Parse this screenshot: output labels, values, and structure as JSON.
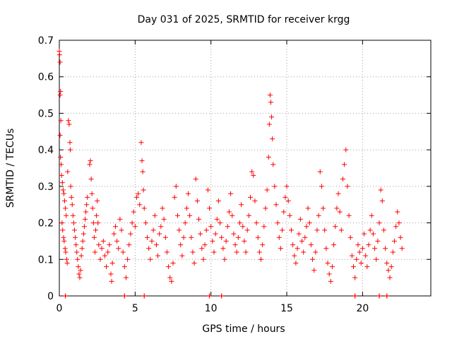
{
  "chart_data": {
    "type": "scatter",
    "title": "Day 031 of 2025, SRMTID for receiver krgg",
    "xlabel": "GPS time / hours",
    "ylabel": "SRMTID / TECUs",
    "xlim": [
      0,
      24.5
    ],
    "ylim": [
      0,
      0.7
    ],
    "xticks": [
      0,
      5,
      10,
      15,
      20
    ],
    "yticks": [
      0,
      0.1,
      0.2,
      0.3,
      0.4,
      0.5,
      0.6,
      0.7
    ],
    "grid": true,
    "marker": "+",
    "color": "#ff0000",
    "series": [
      {
        "name": "SRMTID",
        "points": [
          [
            0.0,
            0.67
          ],
          [
            0.02,
            0.66
          ],
          [
            0.05,
            0.64
          ],
          [
            0.08,
            0.56
          ],
          [
            0.05,
            0.55
          ],
          [
            0.1,
            0.48
          ],
          [
            0.05,
            0.44
          ],
          [
            0.08,
            0.38
          ],
          [
            0.12,
            0.36
          ],
          [
            0.15,
            0.33
          ],
          [
            0.2,
            0.31
          ],
          [
            0.25,
            0.29
          ],
          [
            0.3,
            0.28
          ],
          [
            0.35,
            0.26
          ],
          [
            0.4,
            0.24
          ],
          [
            0.45,
            0.22
          ],
          [
            0.18,
            0.2
          ],
          [
            0.22,
            0.18
          ],
          [
            0.28,
            0.16
          ],
          [
            0.32,
            0.15
          ],
          [
            0.38,
            0.13
          ],
          [
            0.42,
            0.12
          ],
          [
            0.48,
            0.1
          ],
          [
            0.52,
            0.09
          ],
          [
            0.6,
            0.48
          ],
          [
            0.65,
            0.47
          ],
          [
            0.7,
            0.42
          ],
          [
            0.72,
            0.4
          ],
          [
            0.55,
            0.34
          ],
          [
            0.75,
            0.3
          ],
          [
            0.8,
            0.27
          ],
          [
            0.85,
            0.25
          ],
          [
            0.9,
            0.22
          ],
          [
            0.95,
            0.2
          ],
          [
            1.0,
            0.18
          ],
          [
            1.05,
            0.16
          ],
          [
            1.1,
            0.14
          ],
          [
            1.15,
            0.12
          ],
          [
            1.2,
            0.1
          ],
          [
            1.25,
            0.08
          ],
          [
            1.3,
            0.06
          ],
          [
            1.35,
            0.05
          ],
          [
            1.4,
            0.07
          ],
          [
            1.45,
            0.11
          ],
          [
            1.5,
            0.13
          ],
          [
            1.55,
            0.15
          ],
          [
            1.6,
            0.17
          ],
          [
            1.65,
            0.19
          ],
          [
            1.7,
            0.21
          ],
          [
            1.75,
            0.23
          ],
          [
            1.8,
            0.25
          ],
          [
            1.85,
            0.27
          ],
          [
            2.0,
            0.36
          ],
          [
            2.05,
            0.37
          ],
          [
            2.1,
            0.32
          ],
          [
            2.15,
            0.28
          ],
          [
            2.2,
            0.24
          ],
          [
            2.25,
            0.2
          ],
          [
            2.3,
            0.16
          ],
          [
            2.35,
            0.12
          ],
          [
            2.4,
            0.18
          ],
          [
            2.45,
            0.22
          ],
          [
            2.5,
            0.26
          ],
          [
            2.55,
            0.2
          ],
          [
            2.6,
            0.14
          ],
          [
            2.7,
            0.1
          ],
          [
            2.8,
            0.13
          ],
          [
            2.9,
            0.15
          ],
          [
            3.0,
            0.11
          ],
          [
            3.1,
            0.08
          ],
          [
            3.2,
            0.12
          ],
          [
            3.3,
            0.14
          ],
          [
            3.4,
            0.06
          ],
          [
            3.45,
            0.04
          ],
          [
            3.5,
            0.09
          ],
          [
            3.6,
            0.17
          ],
          [
            3.7,
            0.19
          ],
          [
            3.8,
            0.15
          ],
          [
            3.9,
            0.13
          ],
          [
            4.0,
            0.21
          ],
          [
            4.1,
            0.18
          ],
          [
            4.2,
            0.12
          ],
          [
            4.3,
            0.08
          ],
          [
            4.4,
            0.05
          ],
          [
            4.5,
            0.1
          ],
          [
            4.6,
            0.14
          ],
          [
            4.7,
            0.17
          ],
          [
            4.8,
            0.2
          ],
          [
            4.9,
            0.23
          ],
          [
            5.0,
            0.19
          ],
          [
            5.1,
            0.27
          ],
          [
            5.2,
            0.28
          ],
          [
            5.3,
            0.25
          ],
          [
            5.4,
            0.42
          ],
          [
            5.45,
            0.37
          ],
          [
            5.5,
            0.34
          ],
          [
            5.55,
            0.29
          ],
          [
            5.6,
            0.24
          ],
          [
            5.7,
            0.2
          ],
          [
            5.8,
            0.16
          ],
          [
            5.9,
            0.13
          ],
          [
            6.0,
            0.1
          ],
          [
            6.1,
            0.15
          ],
          [
            6.2,
            0.18
          ],
          [
            6.3,
            0.22
          ],
          [
            6.4,
            0.14
          ],
          [
            6.5,
            0.11
          ],
          [
            6.6,
            0.17
          ],
          [
            6.7,
            0.19
          ],
          [
            6.8,
            0.24
          ],
          [
            6.9,
            0.21
          ],
          [
            7.0,
            0.16
          ],
          [
            7.1,
            0.12
          ],
          [
            7.2,
            0.08
          ],
          [
            7.3,
            0.05
          ],
          [
            7.4,
            0.04
          ],
          [
            7.5,
            0.09
          ],
          [
            7.6,
            0.27
          ],
          [
            7.7,
            0.3
          ],
          [
            7.8,
            0.22
          ],
          [
            7.9,
            0.18
          ],
          [
            8.0,
            0.14
          ],
          [
            8.1,
            0.11
          ],
          [
            8.2,
            0.16
          ],
          [
            8.3,
            0.2
          ],
          [
            8.4,
            0.24
          ],
          [
            8.5,
            0.28
          ],
          [
            8.6,
            0.22
          ],
          [
            8.7,
            0.16
          ],
          [
            8.8,
            0.12
          ],
          [
            8.9,
            0.09
          ],
          [
            9.0,
            0.32
          ],
          [
            9.1,
            0.26
          ],
          [
            9.2,
            0.21
          ],
          [
            9.3,
            0.17
          ],
          [
            9.4,
            0.13
          ],
          [
            9.5,
            0.1
          ],
          [
            9.6,
            0.14
          ],
          [
            9.7,
            0.18
          ],
          [
            9.8,
            0.29
          ],
          [
            9.9,
            0.24
          ],
          [
            10.0,
            0.19
          ],
          [
            10.1,
            0.15
          ],
          [
            10.2,
            0.12
          ],
          [
            10.3,
            0.17
          ],
          [
            10.4,
            0.21
          ],
          [
            10.5,
            0.26
          ],
          [
            10.6,
            0.2
          ],
          [
            10.7,
            0.16
          ],
          [
            10.8,
            0.13
          ],
          [
            10.9,
            0.1
          ],
          [
            11.0,
            0.15
          ],
          [
            11.1,
            0.19
          ],
          [
            11.2,
            0.23
          ],
          [
            11.3,
            0.28
          ],
          [
            11.4,
            0.22
          ],
          [
            11.5,
            0.17
          ],
          [
            11.6,
            0.14
          ],
          [
            11.7,
            0.12
          ],
          [
            11.8,
            0.16
          ],
          [
            11.9,
            0.2
          ],
          [
            12.0,
            0.25
          ],
          [
            12.1,
            0.19
          ],
          [
            12.2,
            0.15
          ],
          [
            12.3,
            0.12
          ],
          [
            12.4,
            0.18
          ],
          [
            12.5,
            0.22
          ],
          [
            12.6,
            0.27
          ],
          [
            12.7,
            0.34
          ],
          [
            12.8,
            0.33
          ],
          [
            12.9,
            0.26
          ],
          [
            13.0,
            0.2
          ],
          [
            13.1,
            0.16
          ],
          [
            13.2,
            0.12
          ],
          [
            13.3,
            0.1
          ],
          [
            13.4,
            0.14
          ],
          [
            13.5,
            0.19
          ],
          [
            13.6,
            0.24
          ],
          [
            13.7,
            0.29
          ],
          [
            13.8,
            0.38
          ],
          [
            13.85,
            0.47
          ],
          [
            13.9,
            0.55
          ],
          [
            13.95,
            0.53
          ],
          [
            14.0,
            0.49
          ],
          [
            14.05,
            0.43
          ],
          [
            14.1,
            0.36
          ],
          [
            14.2,
            0.3
          ],
          [
            14.3,
            0.25
          ],
          [
            14.4,
            0.2
          ],
          [
            14.5,
            0.16
          ],
          [
            14.6,
            0.13
          ],
          [
            14.7,
            0.18
          ],
          [
            14.8,
            0.23
          ],
          [
            14.9,
            0.27
          ],
          [
            15.0,
            0.3
          ],
          [
            15.1,
            0.26
          ],
          [
            15.2,
            0.22
          ],
          [
            15.3,
            0.18
          ],
          [
            15.4,
            0.14
          ],
          [
            15.5,
            0.11
          ],
          [
            15.6,
            0.09
          ],
          [
            15.7,
            0.13
          ],
          [
            15.8,
            0.17
          ],
          [
            15.9,
            0.21
          ],
          [
            16.0,
            0.15
          ],
          [
            16.1,
            0.12
          ],
          [
            16.2,
            0.16
          ],
          [
            16.3,
            0.19
          ],
          [
            16.4,
            0.24
          ],
          [
            16.5,
            0.2
          ],
          [
            16.6,
            0.14
          ],
          [
            16.7,
            0.1
          ],
          [
            16.8,
            0.07
          ],
          [
            16.9,
            0.12
          ],
          [
            17.0,
            0.18
          ],
          [
            17.1,
            0.22
          ],
          [
            17.2,
            0.34
          ],
          [
            17.3,
            0.3
          ],
          [
            17.4,
            0.24
          ],
          [
            17.5,
            0.18
          ],
          [
            17.6,
            0.13
          ],
          [
            17.7,
            0.09
          ],
          [
            17.8,
            0.06
          ],
          [
            17.9,
            0.04
          ],
          [
            18.0,
            0.08
          ],
          [
            18.1,
            0.14
          ],
          [
            18.2,
            0.19
          ],
          [
            18.3,
            0.24
          ],
          [
            18.4,
            0.28
          ],
          [
            18.5,
            0.23
          ],
          [
            18.6,
            0.18
          ],
          [
            18.7,
            0.32
          ],
          [
            18.8,
            0.36
          ],
          [
            18.9,
            0.4
          ],
          [
            19.0,
            0.3
          ],
          [
            19.1,
            0.22
          ],
          [
            19.2,
            0.16
          ],
          [
            19.3,
            0.11
          ],
          [
            19.4,
            0.08
          ],
          [
            19.5,
            0.05
          ],
          [
            19.6,
            0.1
          ],
          [
            19.7,
            0.14
          ],
          [
            19.8,
            0.12
          ],
          [
            19.9,
            0.09
          ],
          [
            20.0,
            0.13
          ],
          [
            20.1,
            0.17
          ],
          [
            20.2,
            0.11
          ],
          [
            20.3,
            0.08
          ],
          [
            20.4,
            0.14
          ],
          [
            20.5,
            0.18
          ],
          [
            20.6,
            0.22
          ],
          [
            20.7,
            0.17
          ],
          [
            20.8,
            0.13
          ],
          [
            20.9,
            0.1
          ],
          [
            21.0,
            0.15
          ],
          [
            21.1,
            0.2
          ],
          [
            21.2,
            0.29
          ],
          [
            21.3,
            0.26
          ],
          [
            21.4,
            0.18
          ],
          [
            21.5,
            0.13
          ],
          [
            21.6,
            0.09
          ],
          [
            21.7,
            0.07
          ],
          [
            21.8,
            0.05
          ],
          [
            21.9,
            0.08
          ],
          [
            22.0,
            0.12
          ],
          [
            22.1,
            0.15
          ],
          [
            22.2,
            0.19
          ],
          [
            22.3,
            0.23
          ],
          [
            22.4,
            0.2
          ],
          [
            22.5,
            0.16
          ],
          [
            22.6,
            0.13
          ]
        ],
        "axis_markers_x": [
          0.4,
          4.3,
          5.6,
          9.9,
          10.7,
          19.5,
          21.1,
          21.6
        ]
      }
    ]
  }
}
